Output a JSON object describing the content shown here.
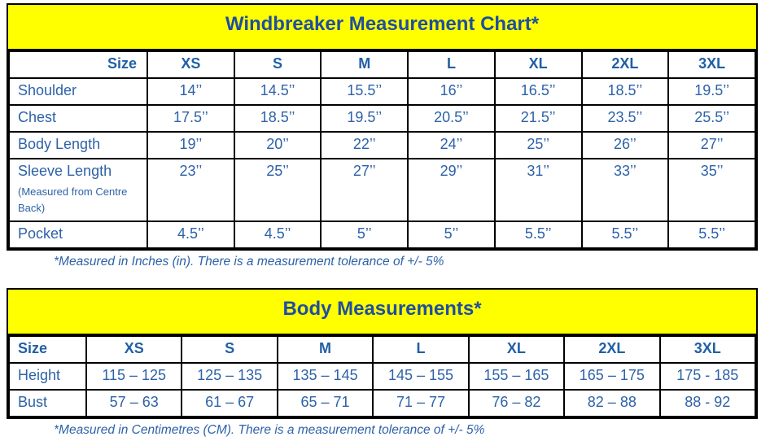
{
  "colors": {
    "title_band_yellow": "#ffff00",
    "title_text_blue": "#1f4e9f",
    "header_text_blue": "#2160a5",
    "body_text_blue": "#2d62a8",
    "border_black": "#000000"
  },
  "tables": [
    {
      "title": "Windbreaker Measurement Chart*",
      "columns": [
        "Size",
        "XS",
        "S",
        "M",
        "L",
        "XL",
        "2XL",
        "3XL"
      ],
      "rows": [
        {
          "label": "Shoulder",
          "sublabel": "",
          "values": [
            "14’’",
            "14.5’’",
            "15.5’’",
            "16’’",
            "16.5’’",
            "18.5’’",
            "19.5’’"
          ]
        },
        {
          "label": "Chest",
          "sublabel": "",
          "values": [
            "17.5’’",
            "18.5’’",
            "19.5’’",
            "20.5’’",
            "21.5’’",
            "23.5’’",
            "25.5’’"
          ]
        },
        {
          "label": "Body Length",
          "sublabel": "",
          "values": [
            "19’’",
            "20’’",
            "22’’",
            "24’’",
            "25’’",
            "26’’",
            "27’’"
          ]
        },
        {
          "label": "Sleeve Length",
          "sublabel": "(Measured from Centre Back)",
          "values": [
            "23’’",
            "25’’",
            "27’’",
            "29’’",
            "31’’",
            "33’’",
            "35’’"
          ]
        },
        {
          "label": "Pocket",
          "sublabel": "",
          "values": [
            "4.5’’",
            "4.5’’",
            "5’’",
            "5’’",
            "5.5’’",
            "5.5’’",
            "5.5’’"
          ]
        }
      ],
      "footnote": "*Measured in Inches (in). There is a measurement tolerance of +/- 5%"
    },
    {
      "title": "Body Measurements*",
      "columns": [
        "Size",
        "XS",
        "S",
        "M",
        "L",
        "XL",
        "2XL",
        "3XL"
      ],
      "rows": [
        {
          "label": "Height",
          "sublabel": "",
          "values": [
            "115 – 125",
            "125 – 135",
            "135 – 145",
            "145 – 155",
            "155 – 165",
            "165 – 175",
            "175 - 185"
          ]
        },
        {
          "label": "Bust",
          "sublabel": "",
          "values": [
            "57 – 63",
            "61 – 67",
            "65 – 71",
            "71 – 77",
            "76 – 82",
            "82 – 88",
            "88 - 92"
          ]
        }
      ],
      "footnote": "*Measured in Centimetres (CM). There is a measurement tolerance of +/- 5%"
    }
  ]
}
